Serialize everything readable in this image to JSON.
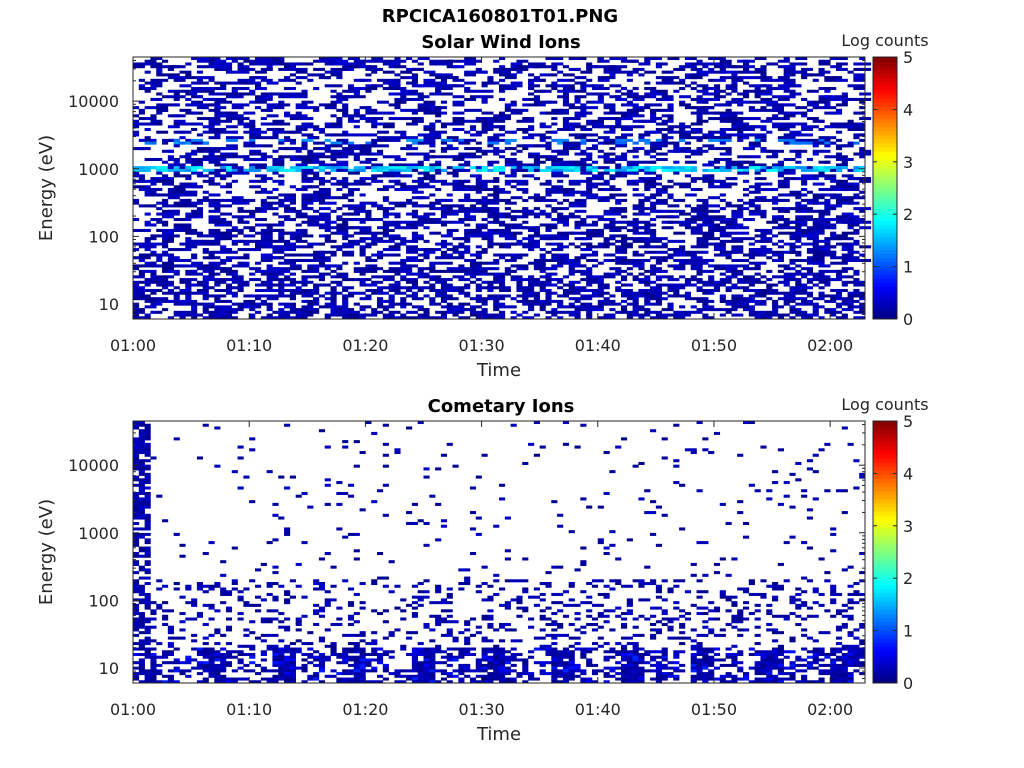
{
  "figure": {
    "title": "RPCICA160801T01.PNG"
  },
  "chart_data": [
    {
      "type": "heatmap",
      "title": "Solar Wind Ions",
      "xlabel": "Time",
      "ylabel": "Energy (eV)",
      "x_ticks": [
        "01:00",
        "01:10",
        "01:20",
        "01:30",
        "01:40",
        "01:50",
        "02:00"
      ],
      "y_ticks": [
        "10",
        "100",
        "1000",
        "10000"
      ],
      "y_scale": "log",
      "x_range": [
        "01:00",
        "02:03"
      ],
      "y_range": [
        6,
        45000
      ],
      "colorbar": {
        "label": "Log counts",
        "range": [
          0,
          5
        ],
        "ticks": [
          "0",
          "1",
          "2",
          "3",
          "4",
          "5"
        ],
        "colormap": "jet"
      },
      "description_of_data": "Sparse scattered counts mostly at log 0–1 across all energies; a persistent band near 1000 eV reaching log ~1.5–2 throughout; dense low-energy counts below ~30 eV.",
      "band": {
        "energy_eV": 1000,
        "log_counts": [
          1.3,
          2.0
        ]
      }
    },
    {
      "type": "heatmap",
      "title": "Cometary Ions",
      "xlabel": "Time",
      "ylabel": "Energy (eV)",
      "x_ticks": [
        "01:00",
        "01:10",
        "01:20",
        "01:30",
        "01:40",
        "01:50",
        "02:00"
      ],
      "y_ticks": [
        "10",
        "100",
        "1000",
        "10000"
      ],
      "y_scale": "log",
      "x_range": [
        "01:00",
        "02:03"
      ],
      "y_range": [
        6,
        45000
      ],
      "colorbar": {
        "label": "Log counts",
        "range": [
          0,
          5
        ],
        "ticks": [
          "0",
          "1",
          "2",
          "3",
          "4",
          "5"
        ],
        "colormap": "jet"
      },
      "description_of_data": "Very sparse counts above ~200 eV; dense column at 01:00 across all energies; counts concentrated below ~200 eV with periodic blocks at ~10 eV reaching log ~0.5.",
      "band": {
        "energy_eV": 12,
        "log_counts": [
          0.3,
          0.7
        ]
      }
    }
  ]
}
